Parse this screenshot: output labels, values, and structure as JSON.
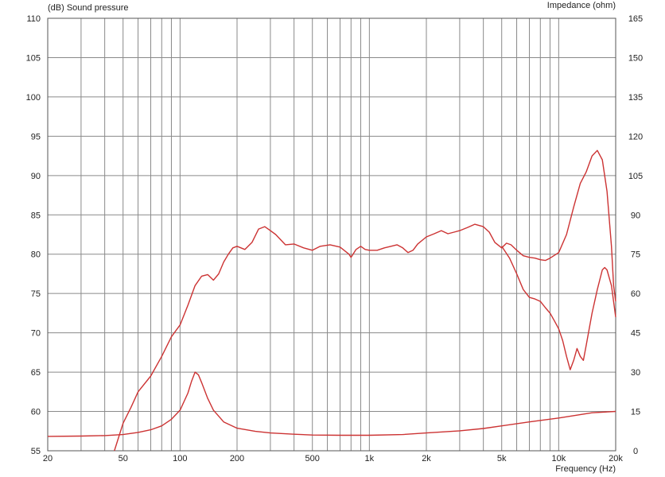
{
  "chart_data": {
    "type": "line",
    "left_axis_label": "(dB)  Sound pressure",
    "right_axis_label": "Impedance  (ohm)",
    "xlabel": "Frequency  (Hz)",
    "x_scale": "log",
    "xlim": [
      20,
      20000
    ],
    "ylim_left": [
      55,
      110
    ],
    "ylim_right": [
      0,
      165
    ],
    "grid": true,
    "colors": {
      "curve": "#cc3333",
      "grid": "#8a8a8a",
      "frame": "#555555",
      "text": "#222222"
    },
    "x_ticks": [
      {
        "value": 20,
        "label": "20"
      },
      {
        "value": 50,
        "label": "50"
      },
      {
        "value": 100,
        "label": "100"
      },
      {
        "value": 200,
        "label": "200"
      },
      {
        "value": 500,
        "label": "500"
      },
      {
        "value": 1000,
        "label": "1k"
      },
      {
        "value": 2000,
        "label": "2k"
      },
      {
        "value": 5000,
        "label": "5k"
      },
      {
        "value": 10000,
        "label": "10k"
      },
      {
        "value": 20000,
        "label": "20k"
      }
    ],
    "y_left_ticks": [
      {
        "value": 55,
        "label": "55"
      },
      {
        "value": 60,
        "label": "60"
      },
      {
        "value": 65,
        "label": "65"
      },
      {
        "value": 70,
        "label": "70"
      },
      {
        "value": 75,
        "label": "75"
      },
      {
        "value": 80,
        "label": "80"
      },
      {
        "value": 85,
        "label": "85"
      },
      {
        "value": 90,
        "label": "90"
      },
      {
        "value": 95,
        "label": "95"
      },
      {
        "value": 100,
        "label": "100"
      },
      {
        "value": 105,
        "label": "105"
      },
      {
        "value": 110,
        "label": "110"
      }
    ],
    "y_right_ticks": [
      {
        "value": 0,
        "label": "0"
      },
      {
        "value": 15,
        "label": "15"
      },
      {
        "value": 30,
        "label": "30"
      },
      {
        "value": 45,
        "label": "45"
      },
      {
        "value": 60,
        "label": "60"
      },
      {
        "value": 75,
        "label": "75"
      },
      {
        "value": 90,
        "label": "90"
      },
      {
        "value": 105,
        "label": "105"
      },
      {
        "value": 120,
        "label": "120"
      },
      {
        "value": 135,
        "label": "135"
      },
      {
        "value": 150,
        "label": "150"
      },
      {
        "value": 165,
        "label": "165"
      }
    ],
    "series": [
      {
        "axis": "left",
        "points": [
          [
            45,
            55.0
          ],
          [
            50,
            58.5
          ],
          [
            55,
            60.5
          ],
          [
            60,
            62.5
          ],
          [
            70,
            64.5
          ],
          [
            80,
            67.0
          ],
          [
            90,
            69.5
          ],
          [
            100,
            71.0
          ],
          [
            110,
            73.5
          ],
          [
            120,
            76.0
          ],
          [
            130,
            77.2
          ],
          [
            140,
            77.4
          ],
          [
            150,
            76.7
          ],
          [
            160,
            77.5
          ],
          [
            170,
            79.0
          ],
          [
            180,
            80.0
          ],
          [
            190,
            80.8
          ],
          [
            200,
            81.0
          ],
          [
            220,
            80.6
          ],
          [
            240,
            81.5
          ],
          [
            260,
            83.2
          ],
          [
            280,
            83.5
          ],
          [
            300,
            83.0
          ],
          [
            320,
            82.5
          ],
          [
            360,
            81.2
          ],
          [
            400,
            81.3
          ],
          [
            450,
            80.8
          ],
          [
            500,
            80.5
          ],
          [
            550,
            81.0
          ],
          [
            620,
            81.2
          ],
          [
            700,
            80.9
          ],
          [
            780,
            80.0
          ],
          [
            800,
            79.6
          ],
          [
            850,
            80.6
          ],
          [
            900,
            81.0
          ],
          [
            950,
            80.6
          ],
          [
            1000,
            80.5
          ],
          [
            1100,
            80.5
          ],
          [
            1200,
            80.8
          ],
          [
            1300,
            81.0
          ],
          [
            1400,
            81.2
          ],
          [
            1500,
            80.8
          ],
          [
            1600,
            80.2
          ],
          [
            1700,
            80.5
          ],
          [
            1800,
            81.3
          ],
          [
            2000,
            82.2
          ],
          [
            2200,
            82.6
          ],
          [
            2400,
            83.0
          ],
          [
            2600,
            82.6
          ],
          [
            2800,
            82.8
          ],
          [
            3000,
            83.0
          ],
          [
            3300,
            83.4
          ],
          [
            3600,
            83.8
          ],
          [
            4000,
            83.5
          ],
          [
            4300,
            82.8
          ],
          [
            4600,
            81.5
          ],
          [
            5000,
            80.8
          ],
          [
            5300,
            81.4
          ],
          [
            5600,
            81.2
          ],
          [
            6000,
            80.5
          ],
          [
            6500,
            79.8
          ],
          [
            7000,
            79.6
          ],
          [
            7500,
            79.5
          ],
          [
            8000,
            79.3
          ],
          [
            8500,
            79.2
          ],
          [
            9000,
            79.5
          ],
          [
            10000,
            80.2
          ],
          [
            11000,
            82.5
          ],
          [
            12000,
            86.0
          ],
          [
            13000,
            89.0
          ],
          [
            14000,
            90.5
          ],
          [
            15000,
            92.5
          ],
          [
            16000,
            93.2
          ],
          [
            17000,
            92.0
          ],
          [
            18000,
            88.0
          ],
          [
            19000,
            81.0
          ],
          [
            19500,
            76.0
          ],
          [
            20000,
            74.0
          ]
        ]
      },
      {
        "axis": "left",
        "points": [
          [
            5000,
            81.0
          ],
          [
            5500,
            79.5
          ],
          [
            6000,
            77.5
          ],
          [
            6500,
            75.5
          ],
          [
            7000,
            74.5
          ],
          [
            7500,
            74.3
          ],
          [
            8000,
            74.0
          ],
          [
            8500,
            73.2
          ],
          [
            9000,
            72.5
          ],
          [
            9500,
            71.5
          ],
          [
            10000,
            70.5
          ],
          [
            10500,
            69.0
          ],
          [
            11000,
            67.0
          ],
          [
            11500,
            65.3
          ],
          [
            12000,
            66.5
          ],
          [
            12500,
            68.0
          ],
          [
            13000,
            67.0
          ],
          [
            13500,
            66.5
          ],
          [
            14000,
            68.5
          ],
          [
            15000,
            72.5
          ],
          [
            16000,
            75.5
          ],
          [
            17000,
            78.0
          ],
          [
            17500,
            78.3
          ],
          [
            18000,
            78.0
          ],
          [
            19000,
            76.0
          ],
          [
            20000,
            72.0
          ]
        ]
      },
      {
        "axis": "right",
        "points": [
          [
            20,
            5.5
          ],
          [
            30,
            5.6
          ],
          [
            40,
            5.8
          ],
          [
            50,
            6.2
          ],
          [
            60,
            7.0
          ],
          [
            70,
            8.0
          ],
          [
            80,
            9.5
          ],
          [
            90,
            12.0
          ],
          [
            100,
            15.5
          ],
          [
            110,
            22.0
          ],
          [
            115,
            26.5
          ],
          [
            120,
            30.0
          ],
          [
            125,
            29.0
          ],
          [
            130,
            26.0
          ],
          [
            140,
            20.0
          ],
          [
            150,
            15.5
          ],
          [
            170,
            11.0
          ],
          [
            200,
            8.6
          ],
          [
            250,
            7.4
          ],
          [
            300,
            6.8
          ],
          [
            400,
            6.3
          ],
          [
            500,
            6.0
          ],
          [
            700,
            5.9
          ],
          [
            1000,
            5.9
          ],
          [
            1500,
            6.2
          ],
          [
            2000,
            6.8
          ],
          [
            3000,
            7.6
          ],
          [
            4000,
            8.5
          ],
          [
            5000,
            9.5
          ],
          [
            7000,
            11.0
          ],
          [
            10000,
            12.5
          ],
          [
            15000,
            14.5
          ],
          [
            20000,
            15.0
          ]
        ]
      }
    ]
  }
}
